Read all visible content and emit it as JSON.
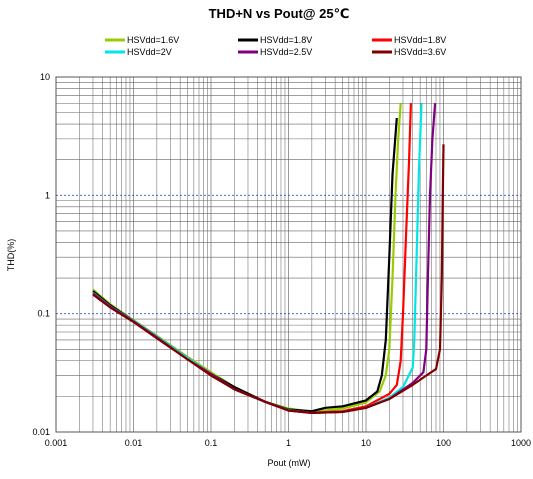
{
  "chart_data": {
    "type": "line",
    "title": "THD+N vs Pout@  25℃",
    "xlabel": "Pout (mW)",
    "ylabel": "THD(%)",
    "x_scale": "log",
    "y_scale": "log",
    "xlim": [
      0.001,
      1000
    ],
    "ylim": [
      0.01,
      10
    ],
    "x_ticks": [
      "0.001",
      "0.01",
      "0.1",
      "1",
      "10",
      "100",
      "1000"
    ],
    "y_ticks": [
      "10",
      "1",
      "0.1",
      "0.01"
    ],
    "grid": true,
    "legend_position": "top",
    "series": [
      {
        "name": "HSVdd=1.6V",
        "color": "#99cc00",
        "points": [
          [
            0.003,
            0.16
          ],
          [
            0.005,
            0.12
          ],
          [
            0.01,
            0.088
          ],
          [
            0.02,
            0.065
          ],
          [
            0.05,
            0.043
          ],
          [
            0.1,
            0.032
          ],
          [
            0.2,
            0.024
          ],
          [
            0.5,
            0.018
          ],
          [
            1,
            0.0158
          ],
          [
            2,
            0.0148
          ],
          [
            5,
            0.0158
          ],
          [
            10,
            0.0178
          ],
          [
            15,
            0.022
          ],
          [
            18,
            0.03
          ],
          [
            20,
            0.05
          ],
          [
            22,
            0.2
          ],
          [
            24,
            1.0
          ],
          [
            26,
            3.0
          ],
          [
            28,
            6.0
          ]
        ]
      },
      {
        "name": "HSVdd=1.8V",
        "color": "#000000",
        "points": [
          [
            0.003,
            0.155
          ],
          [
            0.005,
            0.118
          ],
          [
            0.01,
            0.087
          ],
          [
            0.02,
            0.064
          ],
          [
            0.05,
            0.042
          ],
          [
            0.1,
            0.031
          ],
          [
            0.2,
            0.024
          ],
          [
            0.5,
            0.018
          ],
          [
            1,
            0.0155
          ],
          [
            2,
            0.015
          ],
          [
            3,
            0.016
          ],
          [
            5,
            0.0165
          ],
          [
            10,
            0.0185
          ],
          [
            14,
            0.022
          ],
          [
            16,
            0.03
          ],
          [
            18,
            0.06
          ],
          [
            20,
            0.3
          ],
          [
            22,
            1.5
          ],
          [
            25,
            4.5
          ]
        ]
      },
      {
        "name": "HSVdd=1.8V",
        "color": "#ff0000",
        "points": [
          [
            0.003,
            0.15
          ],
          [
            0.005,
            0.115
          ],
          [
            0.01,
            0.086
          ],
          [
            0.02,
            0.063
          ],
          [
            0.05,
            0.042
          ],
          [
            0.1,
            0.031
          ],
          [
            0.2,
            0.023
          ],
          [
            0.5,
            0.018
          ],
          [
            1,
            0.0152
          ],
          [
            2,
            0.0145
          ],
          [
            5,
            0.015
          ],
          [
            10,
            0.0165
          ],
          [
            20,
            0.021
          ],
          [
            25,
            0.025
          ],
          [
            28,
            0.04
          ],
          [
            30,
            0.1
          ],
          [
            33,
            0.5
          ],
          [
            36,
            2.0
          ],
          [
            38,
            6.0
          ]
        ]
      },
      {
        "name": "HSVdd=2V",
        "color": "#00e5e5",
        "points": [
          [
            0.003,
            0.15
          ],
          [
            0.005,
            0.115
          ],
          [
            0.01,
            0.087
          ],
          [
            0.02,
            0.064
          ],
          [
            0.05,
            0.042
          ],
          [
            0.1,
            0.031
          ],
          [
            0.2,
            0.023
          ],
          [
            0.5,
            0.018
          ],
          [
            1,
            0.0153
          ],
          [
            2,
            0.0145
          ],
          [
            5,
            0.0148
          ],
          [
            10,
            0.016
          ],
          [
            20,
            0.0195
          ],
          [
            30,
            0.024
          ],
          [
            40,
            0.035
          ],
          [
            42,
            0.06
          ],
          [
            45,
            0.3
          ],
          [
            48,
            1.5
          ],
          [
            52,
            6.0
          ]
        ]
      },
      {
        "name": "HSVdd=2.5V",
        "color": "#800080",
        "points": [
          [
            0.003,
            0.148
          ],
          [
            0.005,
            0.114
          ],
          [
            0.01,
            0.086
          ],
          [
            0.02,
            0.063
          ],
          [
            0.05,
            0.041
          ],
          [
            0.1,
            0.031
          ],
          [
            0.2,
            0.023
          ],
          [
            0.5,
            0.018
          ],
          [
            1,
            0.0152
          ],
          [
            2,
            0.0145
          ],
          [
            5,
            0.0148
          ],
          [
            10,
            0.016
          ],
          [
            20,
            0.019
          ],
          [
            40,
            0.026
          ],
          [
            55,
            0.032
          ],
          [
            60,
            0.05
          ],
          [
            63,
            0.2
          ],
          [
            67,
            1.0
          ],
          [
            72,
            3.0
          ],
          [
            78,
            6.0
          ]
        ]
      },
      {
        "name": "HSVdd=3.6V",
        "color": "#800000",
        "points": [
          [
            0.003,
            0.145
          ],
          [
            0.005,
            0.113
          ],
          [
            0.01,
            0.085
          ],
          [
            0.02,
            0.062
          ],
          [
            0.05,
            0.041
          ],
          [
            0.1,
            0.03
          ],
          [
            0.2,
            0.023
          ],
          [
            0.5,
            0.018
          ],
          [
            1,
            0.0152
          ],
          [
            2,
            0.0145
          ],
          [
            5,
            0.0148
          ],
          [
            10,
            0.016
          ],
          [
            20,
            0.019
          ],
          [
            40,
            0.025
          ],
          [
            60,
            0.03
          ],
          [
            80,
            0.034
          ],
          [
            90,
            0.05
          ],
          [
            95,
            0.2
          ],
          [
            98,
            1.0
          ],
          [
            100,
            2.7
          ]
        ]
      }
    ]
  }
}
